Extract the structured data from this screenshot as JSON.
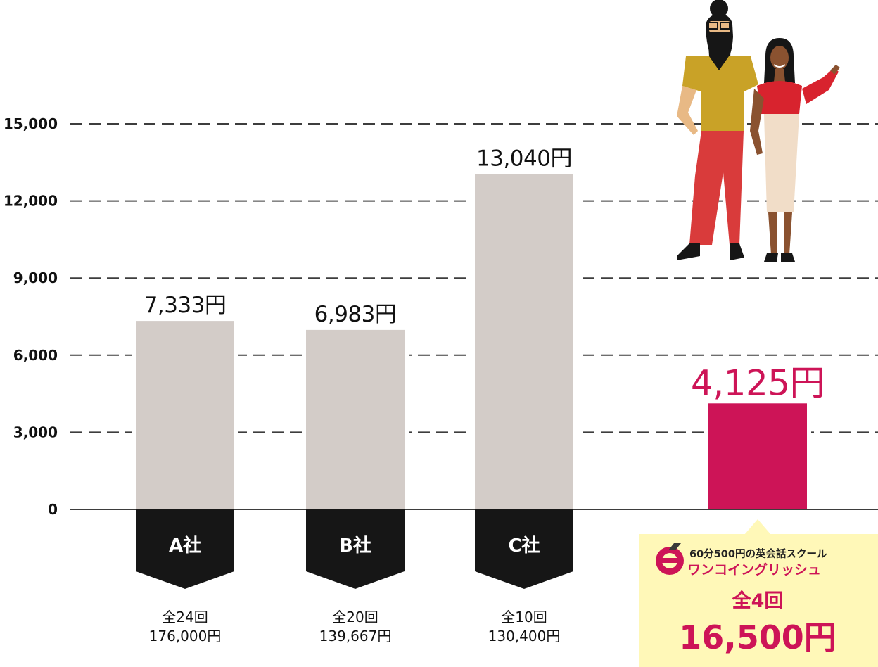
{
  "chart_data": {
    "type": "bar",
    "ylim": [
      0,
      15000
    ],
    "yticks": [
      "15,000",
      "12,000",
      "9,000",
      "6,000",
      "3,000",
      "0"
    ],
    "grid": true,
    "categories": [
      "A社",
      "B社",
      "C社",
      ""
    ],
    "values": [
      7333,
      6983,
      13040,
      4125
    ],
    "value_labels": [
      "7,333円",
      "6,983円",
      "13,040円",
      "4,125円"
    ],
    "details": [
      [
        "全24回",
        "176,000円"
      ],
      [
        "全20回",
        "139,667円"
      ],
      [
        "全10回",
        "130,400円"
      ]
    ],
    "colors": {
      "bar": "#d3ccc8",
      "highlight": "#cd1457",
      "tag": "#161616",
      "promo_bg": "#fff8b8"
    }
  },
  "promo": {
    "tagline": "60分500円の英会話スクール",
    "brand": "ワンコイングリッシュ",
    "count": "全4回",
    "price": "16,500円"
  },
  "illustration": "couple-illustration"
}
